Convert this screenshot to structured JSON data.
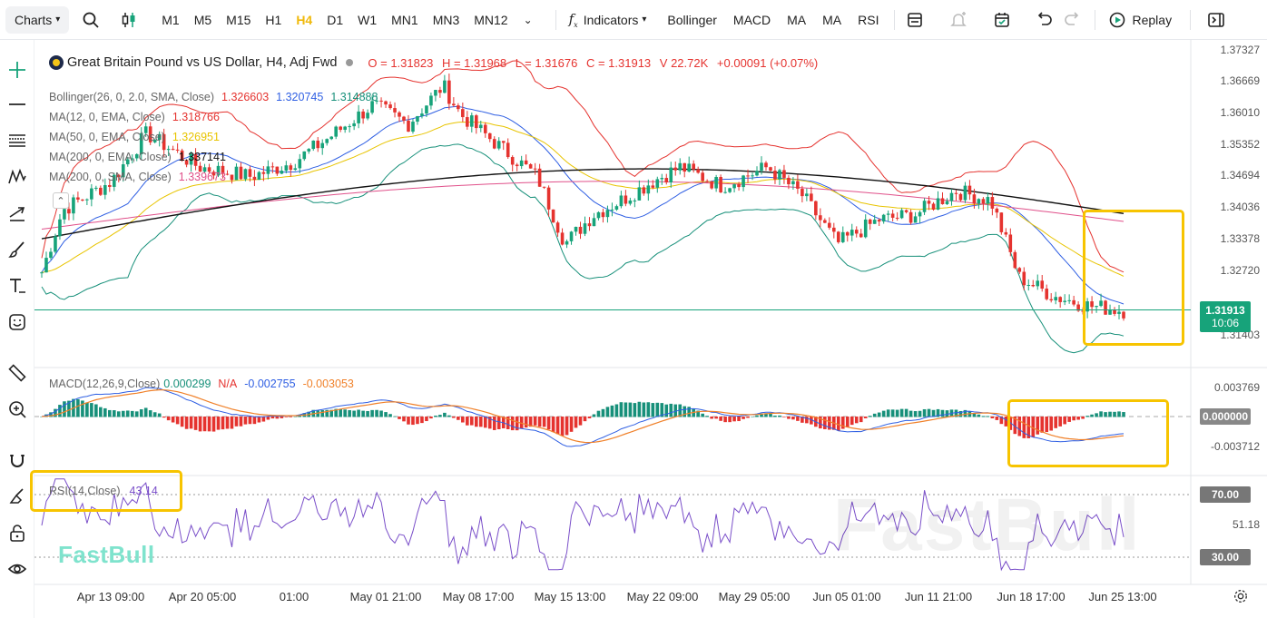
{
  "toolbar": {
    "charts_label": "Charts",
    "timeframes": [
      "M1",
      "M5",
      "M15",
      "H1",
      "H4",
      "D1",
      "W1",
      "MN1",
      "MN3",
      "MN12"
    ],
    "active_timeframe": "H4",
    "indicators_label": "Indicators",
    "indicator_shortcuts": [
      "Bollinger",
      "MACD",
      "MA",
      "MA",
      "RSI"
    ],
    "replay_label": "Replay"
  },
  "symbol": {
    "title": "Great Britain Pound vs US Dollar, H4, Adj Fwd",
    "open": "O = 1.31823",
    "high": "H = 1.31968",
    "low": "L = 1.31676",
    "close": "C = 1.31913",
    "volume": "V 22.72K",
    "change": "+0.00091 (+0.07%)"
  },
  "indicators": [
    {
      "label": "Bollinger(26, 0, 2.0, SMA, Close)",
      "values": [
        "1.326603",
        "1.320745",
        "1.314888"
      ],
      "colors": [
        "#e5332f",
        "#2f5fe3",
        "#17907a"
      ]
    },
    {
      "label": "MA(12, 0, EMA, Close)",
      "values": [
        "1.318766"
      ],
      "colors": [
        "#e5332f"
      ]
    },
    {
      "label": "MA(50, 0, EMA, Close)",
      "values": [
        "1.326951"
      ],
      "colors": [
        "#e8c400"
      ]
    },
    {
      "label": "MA(200, 0, EMA, Close)",
      "values": [
        "1.337141"
      ],
      "colors": [
        "#111111"
      ]
    },
    {
      "label": "MA(200, 0, SMA, Close)",
      "values": [
        "1.339673"
      ],
      "colors": [
        "#e0508a"
      ]
    }
  ],
  "price_axis": [
    "1.37327",
    "1.36669",
    "1.36010",
    "1.35352",
    "1.34694",
    "1.34036",
    "1.33378",
    "1.32720",
    "1.31403"
  ],
  "current_price": {
    "price": "1.31913",
    "countdown": "10:06",
    "color": "#17a37a"
  },
  "macd": {
    "label": "MACD(12,26,9,Close)",
    "values": [
      "0.000299",
      "N/A",
      "-0.002755",
      "-0.003053"
    ],
    "colors": [
      "#17907a",
      "#e5332f",
      "#2f5fe3",
      "#f0812a"
    ],
    "axis": [
      "0.003769",
      "0.000000",
      "-0.003712"
    ]
  },
  "rsi": {
    "label": "RSI(14,Close)",
    "value": "43.14",
    "axis": [
      "70.00",
      "51.18",
      "30.00"
    ]
  },
  "time_axis": [
    "Apr 13 09:00",
    "Apr 20 05:00",
    "01:00",
    "May 01 21:00",
    "May 08 17:00",
    "May 15 13:00",
    "May 22 09:00",
    "May 29 05:00",
    "Jun 05 01:00",
    "Jun 11 21:00",
    "Jun 18 17:00",
    "Jun 25 13:00"
  ],
  "watermark": "FastBull",
  "colors": {
    "up": "#17a37a",
    "down": "#e5332f",
    "highlight": "#f7c400",
    "accent": "#f0b90b"
  }
}
